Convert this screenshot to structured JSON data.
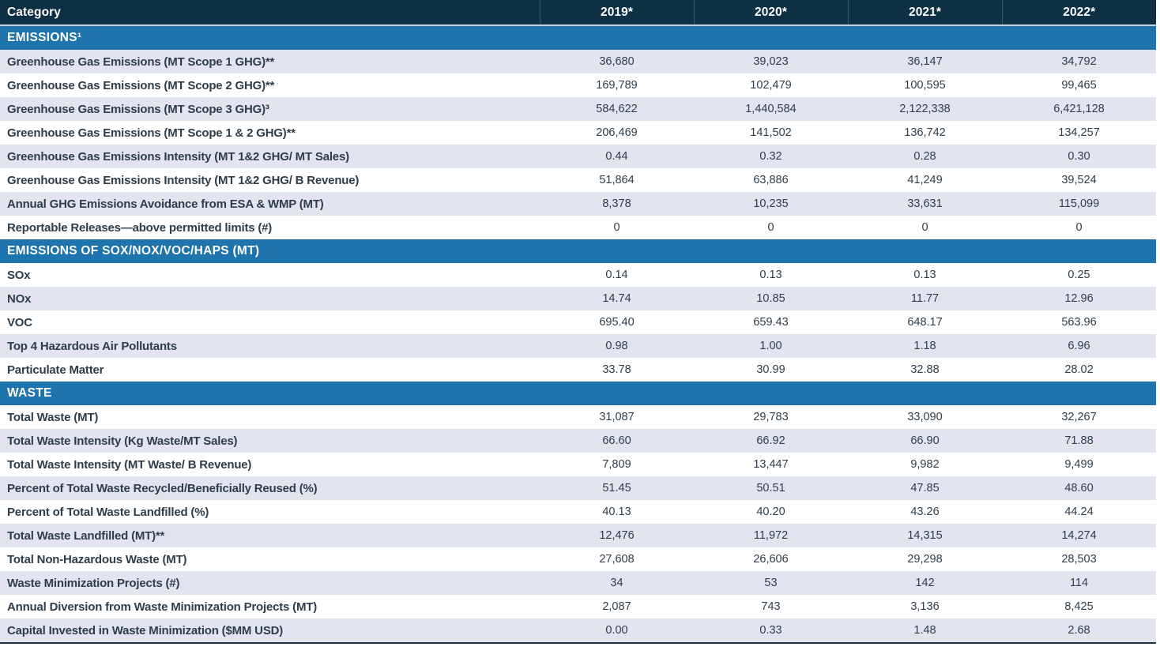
{
  "table": {
    "header": {
      "category_label": "Category",
      "years": [
        "2019*",
        "2020*",
        "2021*",
        "2022*"
      ]
    },
    "sections": [
      {
        "title": "EMISSIONS¹",
        "rows": [
          {
            "label": "Greenhouse Gas Emissions (MT Scope 1 GHG)**",
            "values": [
              "36,680",
              "39,023",
              "36,147",
              "34,792"
            ]
          },
          {
            "label": "Greenhouse Gas Emissions (MT Scope 2 GHG)**",
            "values": [
              "169,789",
              "102,479",
              "100,595",
              "99,465"
            ]
          },
          {
            "label": "Greenhouse Gas Emissions (MT Scope 3 GHG)³",
            "values": [
              "584,622",
              "1,440,584",
              "2,122,338",
              "6,421,128"
            ]
          },
          {
            "label": "Greenhouse Gas Emissions (MT Scope 1 & 2 GHG)**",
            "values": [
              "206,469",
              "141,502",
              "136,742",
              "134,257"
            ]
          },
          {
            "label": "Greenhouse Gas Emissions Intensity (MT 1&2 GHG/ MT Sales)",
            "values": [
              "0.44",
              "0.32",
              "0.28",
              "0.30"
            ]
          },
          {
            "label": "Greenhouse Gas Emissions Intensity (MT 1&2 GHG/ B Revenue)",
            "values": [
              "51,864",
              "63,886",
              "41,249",
              "39,524"
            ]
          },
          {
            "label": "Annual GHG Emissions Avoidance from ESA & WMP (MT)",
            "values": [
              "8,378",
              "10,235",
              "33,631",
              "115,099"
            ]
          },
          {
            "label": "Reportable Releases—above permitted limits (#)",
            "values": [
              "0",
              "0",
              "0",
              "0"
            ]
          }
        ]
      },
      {
        "title": "EMISSIONS OF SOX/NOX/VOC/HAPS (MT)",
        "rows": [
          {
            "label": "SOx",
            "values": [
              "0.14",
              "0.13",
              "0.13",
              "0.25"
            ]
          },
          {
            "label": "NOx",
            "values": [
              "14.74",
              "10.85",
              "11.77",
              "12.96"
            ]
          },
          {
            "label": "VOC",
            "values": [
              "695.40",
              "659.43",
              "648.17",
              "563.96"
            ]
          },
          {
            "label": "Top 4 Hazardous Air Pollutants",
            "values": [
              "0.98",
              "1.00",
              "1.18",
              "6.96"
            ]
          },
          {
            "label": "Particulate Matter",
            "values": [
              "33.78",
              "30.99",
              "32.88",
              "28.02"
            ]
          }
        ]
      },
      {
        "title": "WASTE",
        "rows": [
          {
            "label": "Total Waste (MT)",
            "values": [
              "31,087",
              "29,783",
              "33,090",
              "32,267"
            ]
          },
          {
            "label": "Total Waste Intensity (Kg Waste/MT Sales)",
            "values": [
              "66.60",
              "66.92",
              "66.90",
              "71.88"
            ]
          },
          {
            "label": "Total Waste Intensity (MT Waste/ B Revenue)",
            "values": [
              "7,809",
              "13,447",
              "9,982",
              "9,499"
            ]
          },
          {
            "label": "Percent of Total Waste Recycled/Beneficially Reused (%)",
            "values": [
              "51.45",
              "50.51",
              "47.85",
              "48.60"
            ]
          },
          {
            "label": "Percent of Total Waste Landfilled (%)",
            "values": [
              "40.13",
              "40.20",
              "43.26",
              "44.24"
            ]
          },
          {
            "label": "Total Waste Landfilled (MT)**",
            "values": [
              "12,476",
              "11,972",
              "14,315",
              "14,274"
            ]
          },
          {
            "label": "Total Non-Hazardous Waste (MT)",
            "values": [
              "27,608",
              "26,606",
              "29,298",
              "28,503"
            ]
          },
          {
            "label": "Waste Minimization Projects (#)",
            "values": [
              "34",
              "53",
              "142",
              "114"
            ]
          },
          {
            "label": "Annual Diversion from Waste Minimization Projects (MT)",
            "values": [
              "2,087",
              "743",
              "3,136",
              "8,425"
            ]
          },
          {
            "label": "Capital Invested in Waste Minimization ($MM USD)",
            "values": [
              "0.00",
              "0.33",
              "1.48",
              "2.68"
            ]
          }
        ]
      }
    ]
  },
  "colors": {
    "header_bg": "#0e3045",
    "section_bg": "#1e74ad",
    "row_shaded_bg": "#e2e5ef",
    "row_plain_bg": "#ffffff",
    "text_dark": "#2e3d4a",
    "bottom_border": "#17364e"
  }
}
